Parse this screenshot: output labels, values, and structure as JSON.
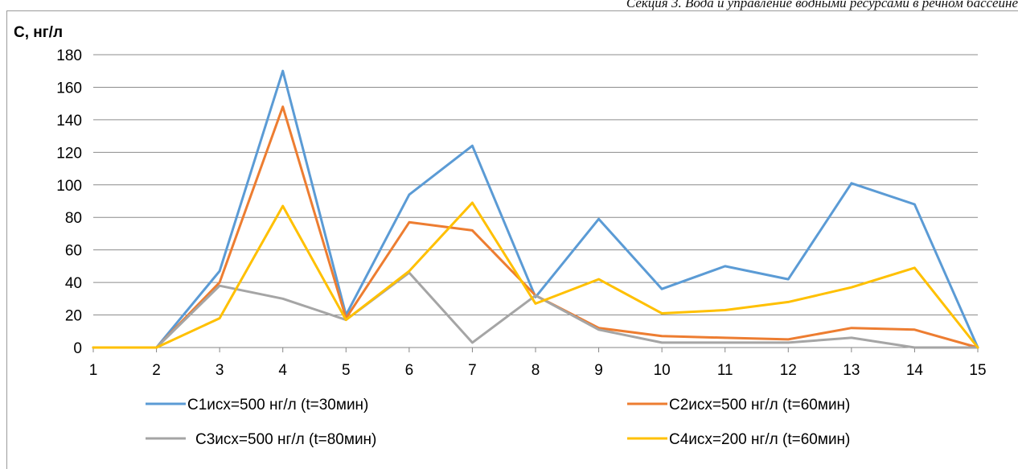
{
  "page": {
    "header": "Секция 3. Вода и управление водными ресурсами в речном бассейне"
  },
  "chart_data": {
    "type": "line",
    "title": "",
    "xlabel": "",
    "ylabel": "С, нг/л",
    "categories": [
      "1",
      "2",
      "3",
      "4",
      "5",
      "6",
      "7",
      "8",
      "9",
      "10",
      "11",
      "12",
      "13",
      "14",
      "15"
    ],
    "xlim": [
      1,
      15
    ],
    "ylim": [
      0,
      180
    ],
    "yticks": [
      0,
      20,
      40,
      60,
      80,
      100,
      120,
      140,
      160,
      180
    ],
    "grid": "horizontal",
    "legend_position": "bottom",
    "series": [
      {
        "name": "С1исх=500 нг/л (t=30мин)",
        "color": "#5b9bd5",
        "values": [
          0,
          0,
          47,
          170,
          20,
          94,
          124,
          31,
          79,
          36,
          50,
          42,
          101,
          88,
          0
        ]
      },
      {
        "name": "С2исх=500 нг/л (t=60мин)",
        "color": "#ed7d31",
        "values": [
          0,
          0,
          40,
          148,
          18,
          77,
          72,
          32,
          12,
          7,
          6,
          5,
          12,
          11,
          0
        ]
      },
      {
        "name": "С3исх=500 нг/л (t=80мин)",
        "color": "#a5a5a5",
        "values": [
          0,
          0,
          38,
          30,
          17,
          46,
          3,
          32,
          11,
          3,
          3,
          3,
          6,
          0,
          0
        ]
      },
      {
        "name": "С4исх=200 нг/л (t=60мин)",
        "color": "#ffc000",
        "values": [
          0,
          0,
          18,
          87,
          17,
          47,
          89,
          27,
          42,
          21,
          23,
          28,
          37,
          49,
          0
        ]
      }
    ]
  }
}
